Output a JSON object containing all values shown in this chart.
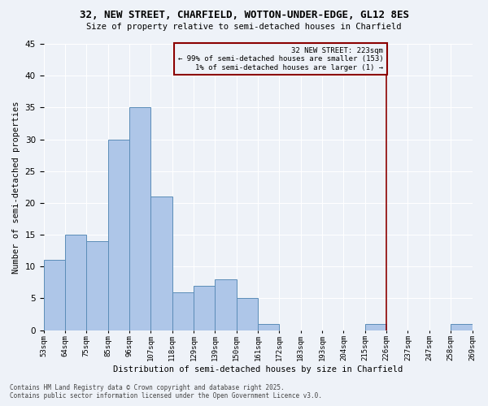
{
  "title": "32, NEW STREET, CHARFIELD, WOTTON-UNDER-EDGE, GL12 8ES",
  "subtitle": "Size of property relative to semi-detached houses in Charfield",
  "xlabel": "Distribution of semi-detached houses by size in Charfield",
  "ylabel": "Number of semi-detached properties",
  "footer_line1": "Contains HM Land Registry data © Crown copyright and database right 2025.",
  "footer_line2": "Contains public sector information licensed under the Open Government Licence v3.0.",
  "bin_labels": [
    "53sqm",
    "64sqm",
    "75sqm",
    "85sqm",
    "96sqm",
    "107sqm",
    "118sqm",
    "129sqm",
    "139sqm",
    "150sqm",
    "161sqm",
    "172sqm",
    "183sqm",
    "193sqm",
    "204sqm",
    "215sqm",
    "226sqm",
    "237sqm",
    "247sqm",
    "258sqm",
    "269sqm"
  ],
  "bar_values": [
    11,
    15,
    14,
    30,
    35,
    21,
    6,
    7,
    8,
    5,
    1,
    0,
    0,
    0,
    0,
    1,
    0,
    0,
    0,
    1,
    0
  ],
  "bar_color": "#aec6e8",
  "bar_edge_color": "#5b8db8",
  "background_color": "#eef2f8",
  "grid_color": "#ffffff",
  "vline_index": 16,
  "vline_color": "#8b0000",
  "annotation_line1": "32 NEW STREET: 223sqm",
  "annotation_line2": "← 99% of semi-detached houses are smaller (153)",
  "annotation_line3": "1% of semi-detached houses are larger (1) →",
  "annotation_box_color": "#8b0000",
  "ylim": [
    0,
    45
  ],
  "yticks": [
    0,
    5,
    10,
    15,
    20,
    25,
    30,
    35,
    40,
    45
  ]
}
